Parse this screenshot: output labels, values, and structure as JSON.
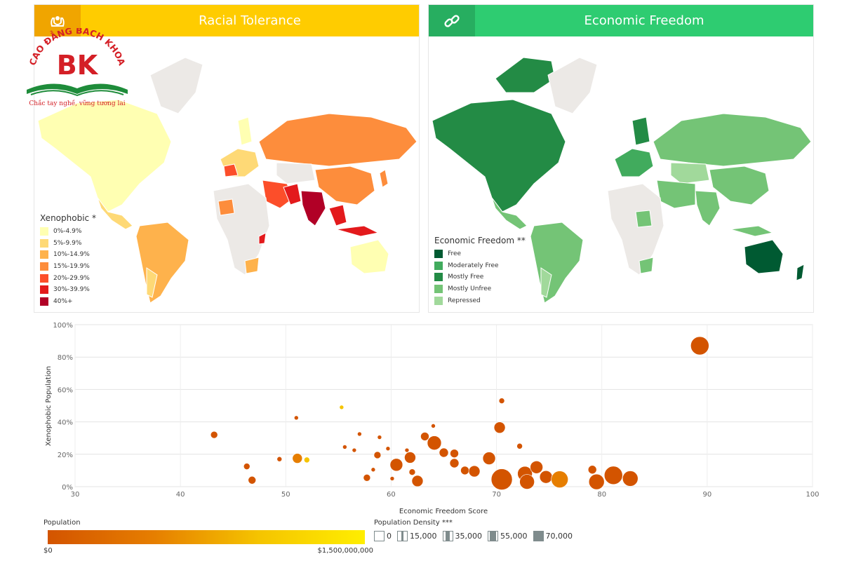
{
  "panels": {
    "racial": {
      "title": "Racial Tolerance",
      "legend_title": "Xenophobic *",
      "legend": [
        {
          "label": "0%-4.9%",
          "color": "#ffffb2"
        },
        {
          "label": "5%-9.9%",
          "color": "#fed976"
        },
        {
          "label": "10%-14.9%",
          "color": "#feb24c"
        },
        {
          "label": "15%-19.9%",
          "color": "#fd8d3c"
        },
        {
          "label": "20%-29.9%",
          "color": "#fc4e2a"
        },
        {
          "label": "30%-39.9%",
          "color": "#e31a1c"
        },
        {
          "label": "40%+",
          "color": "#b10026"
        }
      ]
    },
    "econ": {
      "title": "Economic Freedom",
      "legend_title": "Economic Freedom **",
      "legend": [
        {
          "label": "Free",
          "color": "#005a32"
        },
        {
          "label": "Moderately Free",
          "color": "#41ab5d"
        },
        {
          "label": "Mostly Free",
          "color": "#238b45"
        },
        {
          "label": "Mostly Unfree",
          "color": "#74c476"
        },
        {
          "label": "Repressed",
          "color": "#a1d99b"
        }
      ]
    }
  },
  "logo": {
    "brand": "BK",
    "arc_text": "CAO ĐẲNG BÁCH KHOA",
    "tagline": "Chắc tay nghề, vững tương lai"
  },
  "chart_data": {
    "type": "scatter",
    "xlabel": "Economic Freedom Score",
    "ylabel": "Xenophobic Population",
    "xlim": [
      30,
      100
    ],
    "ylim": [
      0,
      100
    ],
    "x_ticks": [
      "30",
      "40",
      "50",
      "60",
      "70",
      "80",
      "90",
      "100"
    ],
    "y_ticks": [
      "0%",
      "20%",
      "40%",
      "60%",
      "80%",
      "100%"
    ],
    "grid": true,
    "size_legend_title": "Population",
    "size_legend_min": "$0",
    "size_legend_max": "$1,500,000,000",
    "density_legend_title": "Population Density ***",
    "density_legend": [
      "0",
      "15,000",
      "35,000",
      "55,000",
      "70,000"
    ],
    "points": [
      {
        "x": 43.2,
        "y": 32,
        "size": 5,
        "color": "#d35400"
      },
      {
        "x": 46.3,
        "y": 12.5,
        "size": 4.5,
        "color": "#d35400"
      },
      {
        "x": 46.8,
        "y": 4,
        "size": 5.5,
        "color": "#d35400"
      },
      {
        "x": 49.4,
        "y": 17,
        "size": 3.5,
        "color": "#d35400"
      },
      {
        "x": 51,
        "y": 42.5,
        "size": 3,
        "color": "#d35400"
      },
      {
        "x": 51.1,
        "y": 17.5,
        "size": 7,
        "color": "#e67e00"
      },
      {
        "x": 52,
        "y": 16.5,
        "size": 4,
        "color": "#f5c400"
      },
      {
        "x": 55.3,
        "y": 49,
        "size": 3,
        "color": "#f5c400"
      },
      {
        "x": 55.6,
        "y": 24.5,
        "size": 3,
        "color": "#d35400"
      },
      {
        "x": 56.5,
        "y": 22.5,
        "size": 3,
        "color": "#d35400"
      },
      {
        "x": 57,
        "y": 32.5,
        "size": 3,
        "color": "#d35400"
      },
      {
        "x": 57.7,
        "y": 5.5,
        "size": 5,
        "color": "#d35400"
      },
      {
        "x": 58.3,
        "y": 10.5,
        "size": 3,
        "color": "#d35400"
      },
      {
        "x": 58.7,
        "y": 19.5,
        "size": 5,
        "color": "#d35400"
      },
      {
        "x": 58.9,
        "y": 30.5,
        "size": 3,
        "color": "#d35400"
      },
      {
        "x": 59.7,
        "y": 23.5,
        "size": 3,
        "color": "#d35400"
      },
      {
        "x": 60.1,
        "y": 5,
        "size": 3,
        "color": "#d35400"
      },
      {
        "x": 60.5,
        "y": 13.5,
        "size": 9,
        "color": "#d35400"
      },
      {
        "x": 61.5,
        "y": 22.5,
        "size": 3,
        "color": "#d35400"
      },
      {
        "x": 61.8,
        "y": 18,
        "size": 8,
        "color": "#d35400"
      },
      {
        "x": 62,
        "y": 9,
        "size": 4.5,
        "color": "#d35400"
      },
      {
        "x": 62.5,
        "y": 3.5,
        "size": 8,
        "color": "#d35400"
      },
      {
        "x": 63.2,
        "y": 31,
        "size": 6,
        "color": "#d35400"
      },
      {
        "x": 64,
        "y": 37.5,
        "size": 3,
        "color": "#d35400"
      },
      {
        "x": 64.1,
        "y": 27,
        "size": 10,
        "color": "#d35400"
      },
      {
        "x": 65,
        "y": 21,
        "size": 6.5,
        "color": "#d35400"
      },
      {
        "x": 66,
        "y": 14.5,
        "size": 6.5,
        "color": "#d35400"
      },
      {
        "x": 66,
        "y": 20.5,
        "size": 6,
        "color": "#d35400"
      },
      {
        "x": 67,
        "y": 10,
        "size": 6,
        "color": "#d35400"
      },
      {
        "x": 67.9,
        "y": 9.5,
        "size": 8,
        "color": "#d35400"
      },
      {
        "x": 69.3,
        "y": 17.5,
        "size": 9,
        "color": "#d35400"
      },
      {
        "x": 70.3,
        "y": 36.5,
        "size": 8,
        "color": "#d35400"
      },
      {
        "x": 70.5,
        "y": 4.5,
        "size": 15,
        "color": "#d35400"
      },
      {
        "x": 70.5,
        "y": 53,
        "size": 4,
        "color": "#d35400"
      },
      {
        "x": 72.2,
        "y": 25,
        "size": 4,
        "color": "#d35400"
      },
      {
        "x": 72.7,
        "y": 8,
        "size": 10.5,
        "color": "#d35400"
      },
      {
        "x": 72.9,
        "y": 3,
        "size": 10.5,
        "color": "#d35400"
      },
      {
        "x": 73.8,
        "y": 12,
        "size": 9,
        "color": "#d35400"
      },
      {
        "x": 74.7,
        "y": 6,
        "size": 9,
        "color": "#d35400"
      },
      {
        "x": 76,
        "y": 4.5,
        "size": 12,
        "color": "#e67e00"
      },
      {
        "x": 79.1,
        "y": 10.5,
        "size": 6,
        "color": "#d35400"
      },
      {
        "x": 79.5,
        "y": 3,
        "size": 11,
        "color": "#d35400"
      },
      {
        "x": 81.1,
        "y": 7,
        "size": 13,
        "color": "#d35400"
      },
      {
        "x": 82.7,
        "y": 5,
        "size": 11,
        "color": "#d35400"
      },
      {
        "x": 89.3,
        "y": 87,
        "size": 13,
        "color": "#d35400"
      }
    ]
  }
}
